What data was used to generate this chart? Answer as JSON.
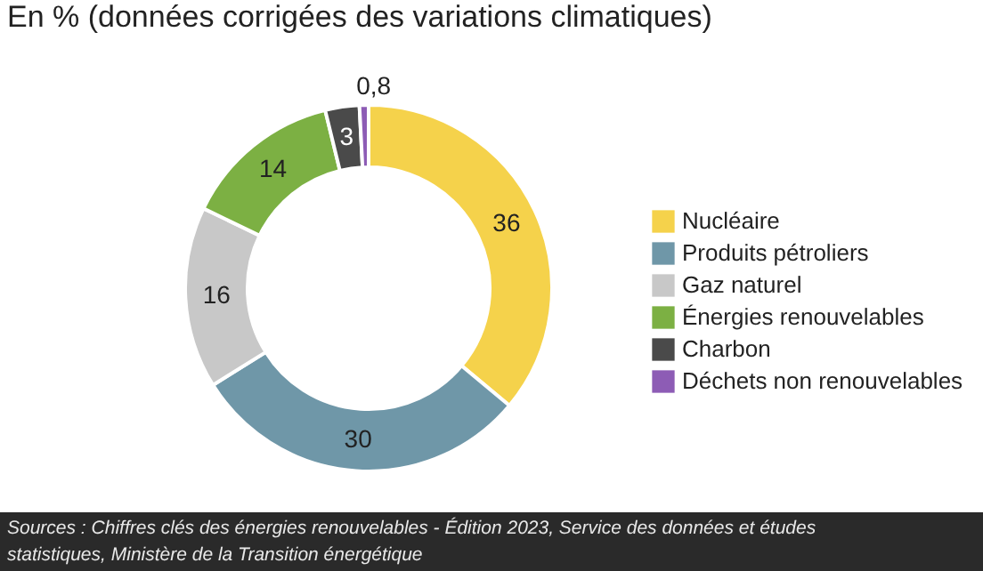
{
  "chart_data": {
    "type": "donut",
    "title": "En % (données corrigées des variations climatiques)",
    "categories": [
      "Nucléaire",
      "Produits pétroliers",
      "Gaz naturel",
      "Énergies renouvelables",
      "Charbon",
      "Déchets non renouvelables"
    ],
    "values": [
      36,
      30,
      16,
      14,
      3,
      0.8
    ],
    "colors": [
      "#f5d24b",
      "#6f97a8",
      "#c8c8c8",
      "#7cb043",
      "#4a4a4a",
      "#8d5cb5"
    ],
    "value_labels": [
      "36",
      "30",
      "16",
      "14",
      "3",
      "0,8"
    ],
    "legend": "right",
    "annotations": [
      "Sources : Chiffres clés des énergies renouvelables - Édition 2023, Service des données et études statistiques, Ministère de la Transition énergétique"
    ]
  }
}
